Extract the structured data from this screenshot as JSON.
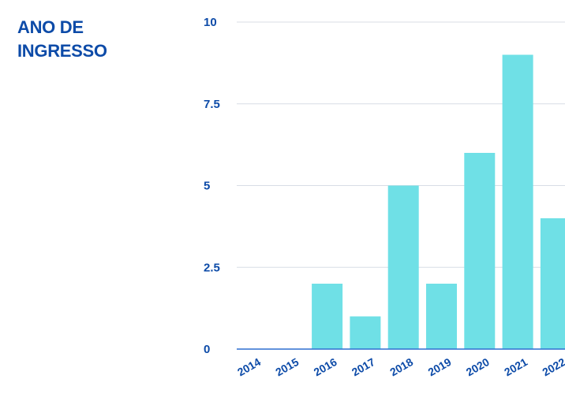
{
  "title": {
    "line1": "ANO DE",
    "line2": "INGRESSO"
  },
  "chart_data": {
    "type": "bar",
    "categories": [
      "2014",
      "2015",
      "2016",
      "2017",
      "2018",
      "2019",
      "2020",
      "2021",
      "2022"
    ],
    "values": [
      0,
      0,
      2,
      1,
      5,
      2,
      6,
      9,
      4
    ],
    "yticks": [
      "0",
      "2.5",
      "5",
      "7.5",
      "10"
    ],
    "ytick_values": [
      0,
      2.5,
      5,
      7.5,
      10
    ],
    "ylim": [
      0,
      10
    ],
    "grid": true,
    "bar_color": "#6fe0e6",
    "text_color": "#0d4ba8",
    "axis_color": "#2f6fd0",
    "grid_color": "#d8dde6"
  }
}
